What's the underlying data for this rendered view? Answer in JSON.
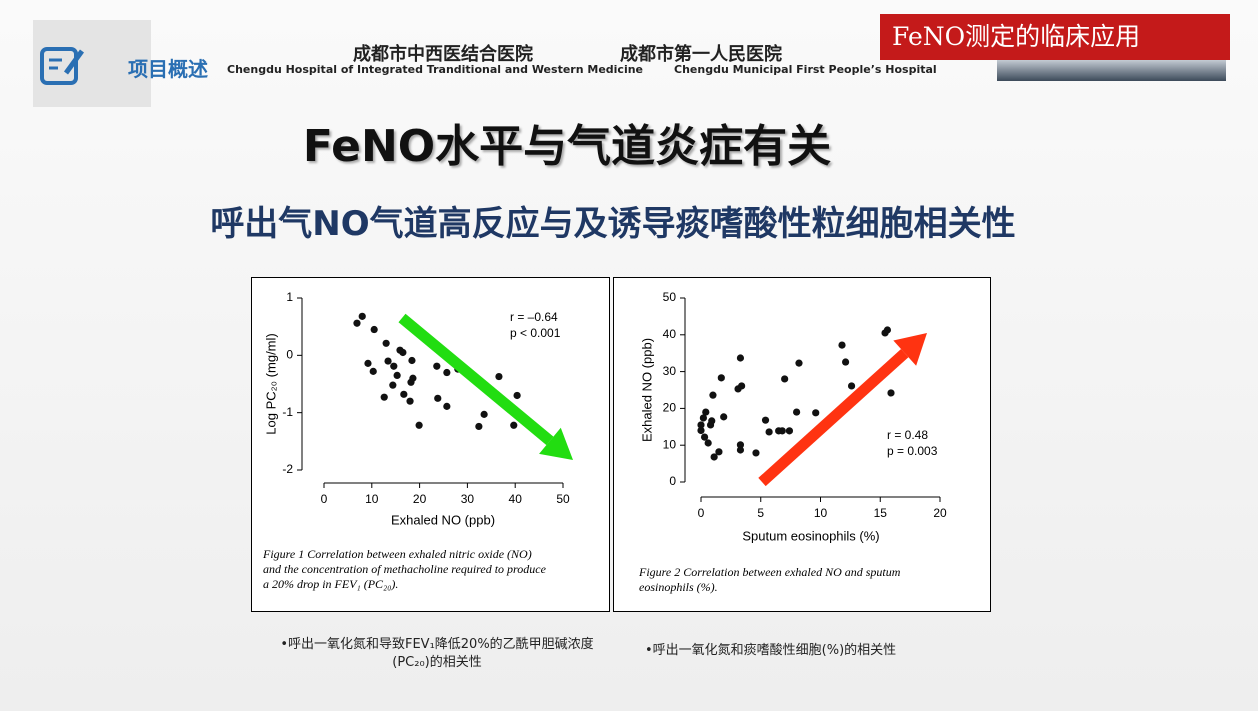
{
  "header": {
    "section": "项目概述",
    "hospital_1_cn": "成都市中西医结合医院",
    "hospital_1_en": "Chengdu Hospital of Integrated Tranditional and Western Medicine",
    "hospital_2_cn": "成都市第一人民医院",
    "hospital_2_en": "Chengdu Municipal First People’s Hospital",
    "banner": "FeNO测定的临床应用"
  },
  "title": "FeNO水平与气道炎症有关",
  "subtitle": "呼出气NO气道高反应与及诱导痰嗜酸性粒细胞相关性",
  "chart_data": [
    {
      "type": "scatter",
      "xlabel": "Exhaled NO (ppb)",
      "ylabel": "Log PC₂₀ (mg/ml)",
      "color": "#111111",
      "xlim": [
        0,
        50
      ],
      "xticks": [
        0,
        10,
        20,
        30,
        40,
        50
      ],
      "ylim": [
        -2,
        1
      ],
      "yticks": [
        -2,
        -1,
        0,
        1
      ],
      "annotations": [
        "r = –0.64",
        "p < 0.001"
      ],
      "caption": [
        "Figure 1   Correlation between exhaled nitric oxide (NO)",
        "and the concentration of methacholine required to produce",
        "a 20% drop in FEV₁ (PC₂₀)."
      ],
      "x": [
        6.9,
        8.0,
        10.5,
        9.2,
        10.3,
        13.0,
        13.4,
        14.6,
        15.9,
        16.5,
        15.3,
        14.4,
        12.6,
        16.7,
        18.0,
        18.2,
        18.6,
        18.4,
        19.9,
        23.6,
        25.7,
        23.8,
        25.7,
        28.0,
        32.4,
        33.5,
        36.6,
        40.4,
        39.7
      ],
      "values": [
        0.56,
        0.68,
        0.45,
        -0.14,
        -0.28,
        0.21,
        -0.1,
        -0.19,
        0.09,
        0.05,
        -0.35,
        -0.52,
        -0.73,
        -0.68,
        -0.8,
        -0.47,
        -0.4,
        -0.09,
        -1.22,
        -0.19,
        -0.3,
        -0.75,
        -0.89,
        -0.24,
        -1.24,
        -1.03,
        -0.37,
        -0.7,
        -1.22
      ]
    },
    {
      "type": "scatter",
      "xlabel": "Sputum eosinophils (%)",
      "ylabel": "Exhaled NO (ppb)",
      "color": "#111111",
      "xlim": [
        0,
        20
      ],
      "xticks": [
        0,
        5,
        10,
        15,
        20
      ],
      "ylim": [
        0,
        50
      ],
      "yticks": [
        0,
        10,
        20,
        30,
        40,
        50
      ],
      "annotations": [
        "r = 0.48",
        "p = 0.003"
      ],
      "caption": [
        "Figure 2   Correlation between exhaled NO and sputum",
        "eosinophils (%)."
      ],
      "x": [
        0,
        0.2,
        0.4,
        0,
        0.3,
        0.6,
        0.8,
        0.9,
        1.1,
        1.5,
        1.0,
        1.7,
        1.9,
        3.1,
        3.4,
        3.3,
        3.3,
        3.3,
        4.6,
        5.4,
        5.7,
        6.5,
        6.8,
        7.4,
        7.0,
        8.0,
        8.2,
        9.6,
        11.8,
        12.1,
        12.6,
        15.4,
        15.6,
        15.9
      ],
      "values": [
        15.5,
        17.4,
        19,
        14,
        12.2,
        10.6,
        15.5,
        16.6,
        6.8,
        8.2,
        23.6,
        28.3,
        17.7,
        25.3,
        26.1,
        33.7,
        10.1,
        8.7,
        7.9,
        16.8,
        13.6,
        13.9,
        13.9,
        13.9,
        28,
        19,
        32.3,
        18.8,
        37.2,
        32.6,
        26.1,
        40.5,
        41.3,
        24.2
      ]
    }
  ],
  "captions": [
    "•呼出一氧化氮和导致FEV₁降低20%的乙酰甲胆碱浓度(PC₂₀)的相关性",
    "•呼出一氧化氮和痰嗜酸性细胞(%)的相关性"
  ]
}
